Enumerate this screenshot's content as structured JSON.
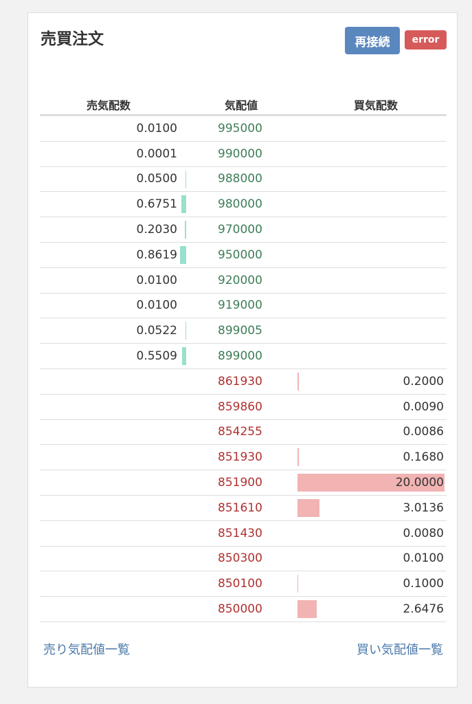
{
  "panel": {
    "title": "売買注文",
    "reconnect_label": "再接続",
    "status_badge": "error"
  },
  "table": {
    "headers": [
      "売気配数",
      "気配値",
      "買気配数"
    ],
    "max_qty": 20.0,
    "asks": [
      {
        "qty": "0.0100",
        "price": "995000"
      },
      {
        "qty": "0.0001",
        "price": "990000"
      },
      {
        "qty": "0.0500",
        "price": "988000"
      },
      {
        "qty": "0.6751",
        "price": "980000"
      },
      {
        "qty": "0.2030",
        "price": "970000"
      },
      {
        "qty": "0.8619",
        "price": "950000"
      },
      {
        "qty": "0.0100",
        "price": "920000"
      },
      {
        "qty": "0.0100",
        "price": "919000"
      },
      {
        "qty": "0.0522",
        "price": "899005"
      },
      {
        "qty": "0.5509",
        "price": "899000"
      }
    ],
    "bids": [
      {
        "qty": "0.2000",
        "price": "861930"
      },
      {
        "qty": "0.0090",
        "price": "859860"
      },
      {
        "qty": "0.0086",
        "price": "854255"
      },
      {
        "qty": "0.1680",
        "price": "851930"
      },
      {
        "qty": "20.0000",
        "price": "851900"
      },
      {
        "qty": "3.0136",
        "price": "851610"
      },
      {
        "qty": "0.0080",
        "price": "851430"
      },
      {
        "qty": "0.0100",
        "price": "850300"
      },
      {
        "qty": "0.1000",
        "price": "850100"
      },
      {
        "qty": "2.6476",
        "price": "850000"
      }
    ]
  },
  "footer": {
    "ask_list_link": "売り気配値一覧",
    "bid_list_link": "買い気配値一覧"
  },
  "colors": {
    "ask_price": "#3e7d57",
    "bid_price": "#b03030",
    "ask_bar": "#99e0cc",
    "bid_bar": "#f2b3b3",
    "reconnect_button": "#5b87bf",
    "error_badge": "#d65a5a"
  }
}
